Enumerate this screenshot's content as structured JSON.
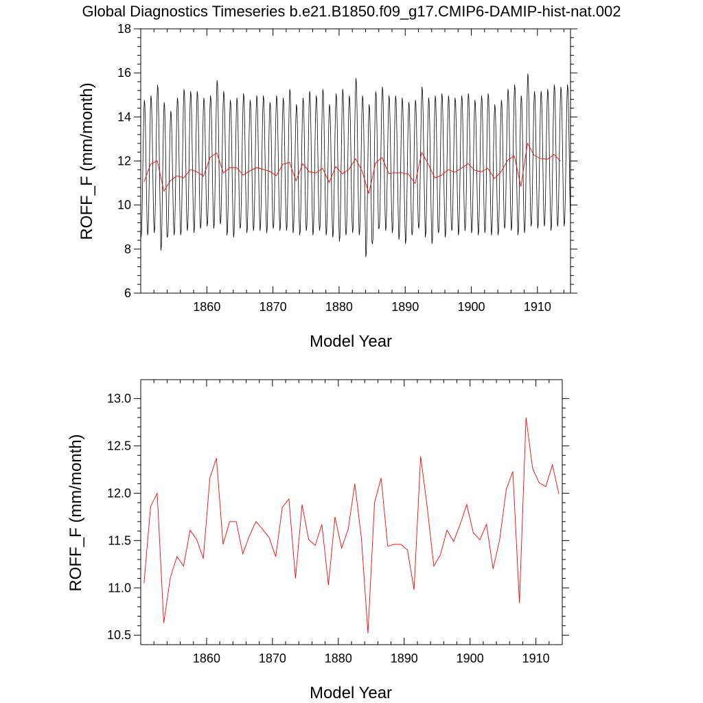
{
  "title": "Global Diagnostics Timeseries b.e21.B1850.f09_g17.CMIP6-DAMIP-hist-nat.002",
  "colors": {
    "monthly": "#000000",
    "annual": "#ff0000",
    "axes": "#000000"
  },
  "chart_data": [
    {
      "type": "line",
      "xlabel": "Model Year",
      "ylabel": "ROFF_F (mm/month)",
      "xlim": [
        1850,
        1915
      ],
      "ylim": [
        6,
        18
      ],
      "x_ticks": [
        1860,
        1870,
        1880,
        1890,
        1900,
        1910
      ],
      "y_ticks": [
        6,
        8,
        10,
        12,
        14,
        16,
        18
      ],
      "monthly_seasonal_cycle": {
        "start_year": 1850,
        "end_year": 1915,
        "max_range": [
          14.5,
          16.0
        ],
        "min_range": [
          7.6,
          9.4
        ]
      },
      "series": [
        {
          "kind": "monthly",
          "color": "#000000",
          "x": [
            1850.5,
            1851.5,
            1852.5,
            1853.5,
            1854.5,
            1855.5,
            1856.5,
            1857.5,
            1858.5,
            1859.5,
            1860.5,
            1861.5,
            1862.5,
            1863.5,
            1864.5,
            1865.5,
            1866.5,
            1867.5,
            1868.5,
            1869.5,
            1870.5,
            1871.5,
            1872.5,
            1873.5,
            1874.5,
            1875.5,
            1876.5,
            1877.5,
            1878.5,
            1879.5,
            1880.5,
            1881.5,
            1882.5,
            1883.5,
            1884.5,
            1885.5,
            1886.5,
            1887.5,
            1888.5,
            1889.5,
            1890.5,
            1891.5,
            1892.5,
            1893.5,
            1894.5,
            1895.5,
            1896.5,
            1897.5,
            1898.5,
            1899.5,
            1900.5,
            1901.5,
            1902.5,
            1903.5,
            1904.5,
            1905.5,
            1906.5,
            1907.5,
            1908.5,
            1909.5,
            1910.5,
            1911.5,
            1912.5,
            1913.5,
            1914.5
          ],
          "peak_values": [
            14.8,
            15.0,
            15.5,
            14.7,
            14.3,
            14.9,
            15.3,
            15.2,
            15.2,
            14.9,
            15.0,
            15.7,
            15.2,
            14.8,
            14.9,
            15.1,
            14.8,
            15.0,
            15.0,
            14.7,
            15.0,
            14.9,
            15.3,
            14.6,
            14.9,
            15.2,
            15.0,
            15.3,
            14.6,
            15.1,
            15.3,
            15.0,
            15.8,
            15.0,
            14.6,
            15.2,
            15.4,
            15.0,
            15.0,
            14.9,
            14.7,
            14.8,
            15.4,
            14.9,
            15.0,
            15.1,
            15.0,
            14.9,
            15.0,
            15.1,
            14.8,
            15.0,
            15.1,
            14.6,
            14.8,
            15.3,
            15.5,
            15.0,
            16.0,
            15.2,
            15.2,
            15.3,
            15.5,
            15.4,
            15.5
          ],
          "trough_values": [
            8.5,
            8.6,
            8.7,
            7.9,
            8.5,
            8.6,
            8.6,
            8.8,
            8.7,
            8.9,
            9.0,
            8.9,
            9.1,
            8.6,
            8.5,
            8.9,
            8.7,
            8.8,
            8.8,
            8.7,
            8.9,
            8.8,
            8.8,
            8.7,
            8.6,
            8.8,
            8.6,
            8.8,
            8.6,
            8.5,
            8.3,
            8.6,
            8.7,
            8.6,
            7.6,
            8.2,
            8.9,
            8.8,
            8.7,
            8.4,
            8.2,
            8.6,
            8.9,
            8.5,
            8.2,
            8.7,
            8.5,
            8.8,
            8.6,
            8.8,
            8.7,
            8.6,
            8.7,
            8.6,
            8.6,
            8.9,
            8.8,
            8.6,
            8.7,
            9.0,
            8.9,
            9.0,
            8.8,
            9.0,
            9.0
          ]
        },
        {
          "kind": "annual",
          "color": "#ff0000",
          "x": [
            1850.5,
            1851.5,
            1852.5,
            1853.5,
            1854.5,
            1855.5,
            1856.5,
            1857.5,
            1858.5,
            1859.5,
            1860.5,
            1861.5,
            1862.5,
            1863.5,
            1864.5,
            1865.5,
            1866.5,
            1867.5,
            1868.5,
            1869.5,
            1870.5,
            1871.5,
            1872.5,
            1873.5,
            1874.5,
            1875.5,
            1876.5,
            1877.5,
            1878.5,
            1879.5,
            1880.5,
            1881.5,
            1882.5,
            1883.5,
            1884.5,
            1885.5,
            1886.5,
            1887.5,
            1888.5,
            1889.5,
            1890.5,
            1891.5,
            1892.5,
            1893.5,
            1894.5,
            1895.5,
            1896.5,
            1897.5,
            1898.5,
            1899.5,
            1900.5,
            1901.5,
            1902.5,
            1903.5,
            1904.5,
            1905.5,
            1906.5,
            1907.5,
            1908.5,
            1909.5,
            1910.5,
            1911.5,
            1912.5,
            1913.5
          ],
          "values": [
            11.05,
            11.86,
            12.0,
            10.63,
            11.11,
            11.33,
            11.23,
            11.61,
            11.51,
            11.31,
            12.16,
            12.37,
            11.46,
            11.7,
            11.7,
            11.36,
            11.55,
            11.7,
            11.62,
            11.53,
            11.33,
            11.85,
            11.94,
            11.1,
            11.88,
            11.51,
            11.45,
            11.67,
            11.03,
            11.75,
            11.42,
            11.62,
            12.1,
            11.53,
            10.52,
            11.9,
            12.16,
            11.44,
            11.46,
            11.46,
            11.4,
            10.98,
            12.39,
            11.85,
            11.23,
            11.35,
            11.61,
            11.49,
            11.67,
            11.88,
            11.58,
            11.51,
            11.67,
            11.2,
            11.51,
            12.04,
            12.23,
            10.84,
            12.8,
            12.26,
            12.11,
            12.07,
            12.3,
            11.99
          ]
        }
      ]
    },
    {
      "type": "line",
      "xlabel": "Model Year",
      "ylabel": "ROFF_F (mm/month)",
      "xlim": [
        1850,
        1914
      ],
      "ylim": [
        10.4,
        13.2
      ],
      "x_ticks": [
        1860,
        1870,
        1880,
        1890,
        1900,
        1910
      ],
      "y_ticks": [
        10.5,
        11.0,
        11.5,
        12.0,
        12.5,
        13.0
      ],
      "y_tick_labels": [
        "10.5",
        "11.0",
        "11.5",
        "12.0",
        "12.5",
        "13.0"
      ],
      "series": [
        {
          "kind": "annual",
          "color": "#ff0000",
          "x": [
            1850.5,
            1851.5,
            1852.5,
            1853.5,
            1854.5,
            1855.5,
            1856.5,
            1857.5,
            1858.5,
            1859.5,
            1860.5,
            1861.5,
            1862.5,
            1863.5,
            1864.5,
            1865.5,
            1866.5,
            1867.5,
            1868.5,
            1869.5,
            1870.5,
            1871.5,
            1872.5,
            1873.5,
            1874.5,
            1875.5,
            1876.5,
            1877.5,
            1878.5,
            1879.5,
            1880.5,
            1881.5,
            1882.5,
            1883.5,
            1884.5,
            1885.5,
            1886.5,
            1887.5,
            1888.5,
            1889.5,
            1890.5,
            1891.5,
            1892.5,
            1893.5,
            1894.5,
            1895.5,
            1896.5,
            1897.5,
            1898.5,
            1899.5,
            1900.5,
            1901.5,
            1902.5,
            1903.5,
            1904.5,
            1905.5,
            1906.5,
            1907.5,
            1908.5,
            1909.5,
            1910.5,
            1911.5,
            1912.5,
            1913.5
          ],
          "values": [
            11.05,
            11.86,
            12.0,
            10.63,
            11.11,
            11.33,
            11.23,
            11.61,
            11.51,
            11.31,
            12.16,
            12.37,
            11.46,
            11.7,
            11.7,
            11.36,
            11.55,
            11.7,
            11.62,
            11.53,
            11.33,
            11.85,
            11.94,
            11.1,
            11.88,
            11.51,
            11.45,
            11.67,
            11.03,
            11.75,
            11.42,
            11.62,
            12.1,
            11.53,
            10.52,
            11.9,
            12.16,
            11.44,
            11.46,
            11.46,
            11.4,
            10.98,
            12.39,
            11.85,
            11.23,
            11.35,
            11.61,
            11.49,
            11.67,
            11.88,
            11.58,
            11.51,
            11.67,
            11.2,
            11.51,
            12.04,
            12.23,
            10.84,
            12.8,
            12.26,
            12.11,
            12.07,
            12.3,
            11.99
          ]
        }
      ]
    }
  ]
}
